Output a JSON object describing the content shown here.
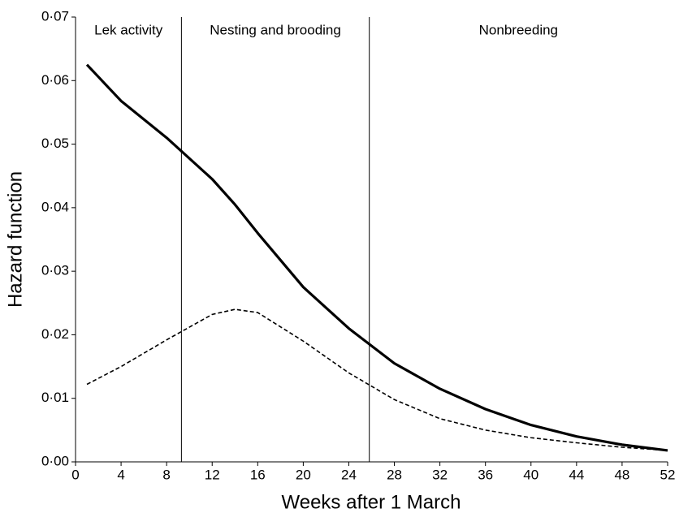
{
  "chart_data": {
    "type": "line",
    "x_label": "Weeks after 1 March",
    "y_label": "Hazard function",
    "x": [
      1,
      4,
      8,
      12,
      14,
      16,
      20,
      24,
      28,
      32,
      36,
      40,
      44,
      48,
      52
    ],
    "series": [
      {
        "color": "#000000",
        "dash": "solid",
        "values": [
          0.0625,
          0.0568,
          0.051,
          0.0445,
          0.0405,
          0.036,
          0.0275,
          0.021,
          0.0155,
          0.0115,
          0.0083,
          0.0058,
          0.004,
          0.0027,
          0.0018
        ]
      },
      {
        "color": "#000000",
        "dash": "dashed",
        "values": [
          0.0122,
          0.015,
          0.0192,
          0.0232,
          0.024,
          0.0235,
          0.019,
          0.014,
          0.0098,
          0.0068,
          0.005,
          0.0038,
          0.003,
          0.0023,
          0.0018
        ]
      }
    ],
    "periods": [
      {
        "label": "Lek activity",
        "start": 0,
        "end": 9.3
      },
      {
        "label": "Nesting and brooding",
        "start": 9.3,
        "end": 25.8
      },
      {
        "label": "Nonbreeding",
        "start": 25.8,
        "end": 52
      }
    ],
    "xlim": [
      0,
      52
    ],
    "xticks": [
      0,
      4,
      8,
      12,
      16,
      20,
      24,
      28,
      32,
      36,
      40,
      44,
      48,
      52
    ],
    "ylim": [
      0,
      0.07
    ],
    "yticks": [
      {
        "value": 0,
        "label": "0·00"
      },
      {
        "value": 0.01,
        "label": "0·01"
      },
      {
        "value": 0.02,
        "label": "0·02"
      },
      {
        "value": 0.03,
        "label": "0·03"
      },
      {
        "value": 0.04,
        "label": "0·04"
      },
      {
        "value": 0.05,
        "label": "0·05"
      },
      {
        "value": 0.06,
        "label": "0·06"
      },
      {
        "value": 0.07,
        "label": "0·07"
      }
    ],
    "grid": false
  }
}
